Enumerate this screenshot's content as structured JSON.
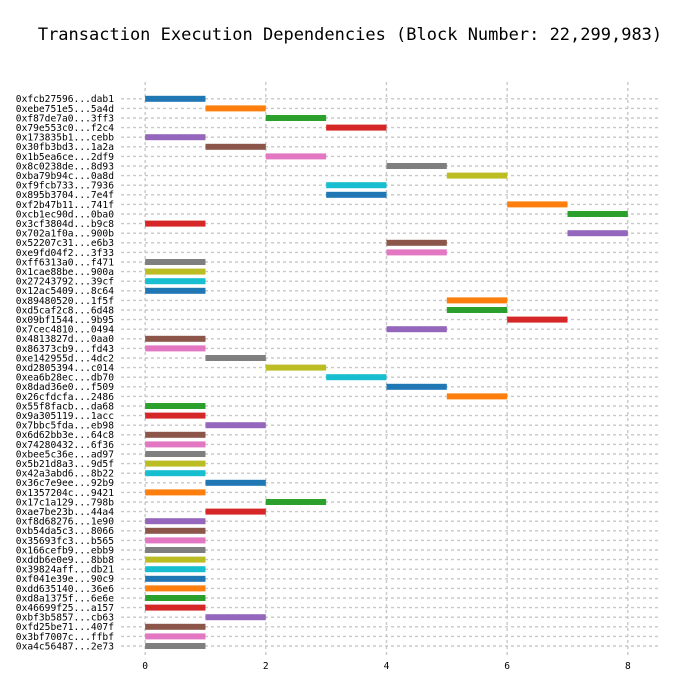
{
  "chart_data": {
    "type": "gantt",
    "title": "Transaction Execution Dependencies (Block Number: 22,299,983)",
    "xlabel": "",
    "ylabel": "",
    "xlim": [
      -0.4,
      8.5
    ],
    "xticks": [
      0,
      2,
      4,
      6,
      8
    ],
    "grid": true,
    "tasks": [
      {
        "label": "0xfcb27596...dab1",
        "start": 0,
        "end": 1,
        "color": "#1f77b4"
      },
      {
        "label": "0xebe751e5...5a4d",
        "start": 1,
        "end": 2,
        "color": "#ff7f0e"
      },
      {
        "label": "0xf87de7a0...3ff3",
        "start": 2,
        "end": 3,
        "color": "#2ca02c"
      },
      {
        "label": "0x79e553c0...f2c4",
        "start": 3,
        "end": 4,
        "color": "#d62728"
      },
      {
        "label": "0x173835b1...cebb",
        "start": 0,
        "end": 1,
        "color": "#9467bd"
      },
      {
        "label": "0x30fb3bd3...1a2a",
        "start": 1,
        "end": 2,
        "color": "#8c564b"
      },
      {
        "label": "0x1b5ea6ce...2df9",
        "start": 2,
        "end": 3,
        "color": "#e377c2"
      },
      {
        "label": "0x8c0238de...8d93",
        "start": 4,
        "end": 5,
        "color": "#7f7f7f"
      },
      {
        "label": "0xba79b94c...0a8d",
        "start": 5,
        "end": 6,
        "color": "#bcbd22"
      },
      {
        "label": "0xf9fcb733...7936",
        "start": 3,
        "end": 4,
        "color": "#17becf"
      },
      {
        "label": "0x895b3704...7e4f",
        "start": 3,
        "end": 4,
        "color": "#1f77b4"
      },
      {
        "label": "0xf2b47b11...741f",
        "start": 6,
        "end": 7,
        "color": "#ff7f0e"
      },
      {
        "label": "0xcb1ec90d...0ba0",
        "start": 7,
        "end": 8,
        "color": "#2ca02c"
      },
      {
        "label": "0x3cf3804d...b9c8",
        "start": 0,
        "end": 1,
        "color": "#d62728"
      },
      {
        "label": "0x702a1f0a...900b",
        "start": 7,
        "end": 8,
        "color": "#9467bd"
      },
      {
        "label": "0x52207c31...e6b3",
        "start": 4,
        "end": 5,
        "color": "#8c564b"
      },
      {
        "label": "0xe9fd04f2...3f33",
        "start": 4,
        "end": 5,
        "color": "#e377c2"
      },
      {
        "label": "0xff6313a0...f471",
        "start": 0,
        "end": 1,
        "color": "#7f7f7f"
      },
      {
        "label": "0x1cae88be...900a",
        "start": 0,
        "end": 1,
        "color": "#bcbd22"
      },
      {
        "label": "0x27243792...39cf",
        "start": 0,
        "end": 1,
        "color": "#17becf"
      },
      {
        "label": "0x12ac5409...8c64",
        "start": 0,
        "end": 1,
        "color": "#1f77b4"
      },
      {
        "label": "0x89480520...1f5f",
        "start": 5,
        "end": 6,
        "color": "#ff7f0e"
      },
      {
        "label": "0xd5caf2c8...6d48",
        "start": 5,
        "end": 6,
        "color": "#2ca02c"
      },
      {
        "label": "0x09bf1544...9b95",
        "start": 6,
        "end": 7,
        "color": "#d62728"
      },
      {
        "label": "0x7cec4810...0494",
        "start": 4,
        "end": 5,
        "color": "#9467bd"
      },
      {
        "label": "0x4813827d...0aa0",
        "start": 0,
        "end": 1,
        "color": "#8c564b"
      },
      {
        "label": "0x86373cb9...fd43",
        "start": 0,
        "end": 1,
        "color": "#e377c2"
      },
      {
        "label": "0xe142955d...4dc2",
        "start": 1,
        "end": 2,
        "color": "#7f7f7f"
      },
      {
        "label": "0xd2805394...c014",
        "start": 2,
        "end": 3,
        "color": "#bcbd22"
      },
      {
        "label": "0xea6b28ec...db70",
        "start": 3,
        "end": 4,
        "color": "#17becf"
      },
      {
        "label": "0x8dad36e0...f509",
        "start": 4,
        "end": 5,
        "color": "#1f77b4"
      },
      {
        "label": "0x26cfdcfa...2486",
        "start": 5,
        "end": 6,
        "color": "#ff7f0e"
      },
      {
        "label": "0x55f8facb...da68",
        "start": 0,
        "end": 1,
        "color": "#2ca02c"
      },
      {
        "label": "0x9a305119...1acc",
        "start": 0,
        "end": 1,
        "color": "#d62728"
      },
      {
        "label": "0x7bbc5fda...eb98",
        "start": 1,
        "end": 2,
        "color": "#9467bd"
      },
      {
        "label": "0x6d62bb3e...64c8",
        "start": 0,
        "end": 1,
        "color": "#8c564b"
      },
      {
        "label": "0x74280432...6f36",
        "start": 0,
        "end": 1,
        "color": "#e377c2"
      },
      {
        "label": "0xbee5c36e...ad97",
        "start": 0,
        "end": 1,
        "color": "#7f7f7f"
      },
      {
        "label": "0x5b21d8a3...9d5f",
        "start": 0,
        "end": 1,
        "color": "#bcbd22"
      },
      {
        "label": "0x42a3abd6...8b22",
        "start": 0,
        "end": 1,
        "color": "#17becf"
      },
      {
        "label": "0x36c7e9ee...92b9",
        "start": 1,
        "end": 2,
        "color": "#1f77b4"
      },
      {
        "label": "0x1357204c...9421",
        "start": 0,
        "end": 1,
        "color": "#ff7f0e"
      },
      {
        "label": "0x17c1a129...798b",
        "start": 2,
        "end": 3,
        "color": "#2ca02c"
      },
      {
        "label": "0xae7be23b...44a4",
        "start": 1,
        "end": 2,
        "color": "#d62728"
      },
      {
        "label": "0xf8d68276...1e90",
        "start": 0,
        "end": 1,
        "color": "#9467bd"
      },
      {
        "label": "0xb54da5c3...8066",
        "start": 0,
        "end": 1,
        "color": "#8c564b"
      },
      {
        "label": "0x35693fc3...b565",
        "start": 0,
        "end": 1,
        "color": "#e377c2"
      },
      {
        "label": "0x166cefb9...ebb9",
        "start": 0,
        "end": 1,
        "color": "#7f7f7f"
      },
      {
        "label": "0xddb6e0e9...8bb8",
        "start": 0,
        "end": 1,
        "color": "#bcbd22"
      },
      {
        "label": "0x39824aff...db21",
        "start": 0,
        "end": 1,
        "color": "#17becf"
      },
      {
        "label": "0xf041e39e...90c9",
        "start": 0,
        "end": 1,
        "color": "#1f77b4"
      },
      {
        "label": "0xdd635140...36e6",
        "start": 0,
        "end": 1,
        "color": "#ff7f0e"
      },
      {
        "label": "0xd8a1375f...6e6e",
        "start": 0,
        "end": 1,
        "color": "#2ca02c"
      },
      {
        "label": "0x46699f25...a157",
        "start": 0,
        "end": 1,
        "color": "#d62728"
      },
      {
        "label": "0xbf3b5857...cb63",
        "start": 1,
        "end": 2,
        "color": "#9467bd"
      },
      {
        "label": "0xfd25be71...407f",
        "start": 0,
        "end": 1,
        "color": "#8c564b"
      },
      {
        "label": "0x3bf7007c...ffbf",
        "start": 0,
        "end": 1,
        "color": "#e377c2"
      },
      {
        "label": "0xa4c56487...2e73",
        "start": 0,
        "end": 1,
        "color": "#7f7f7f"
      }
    ]
  }
}
